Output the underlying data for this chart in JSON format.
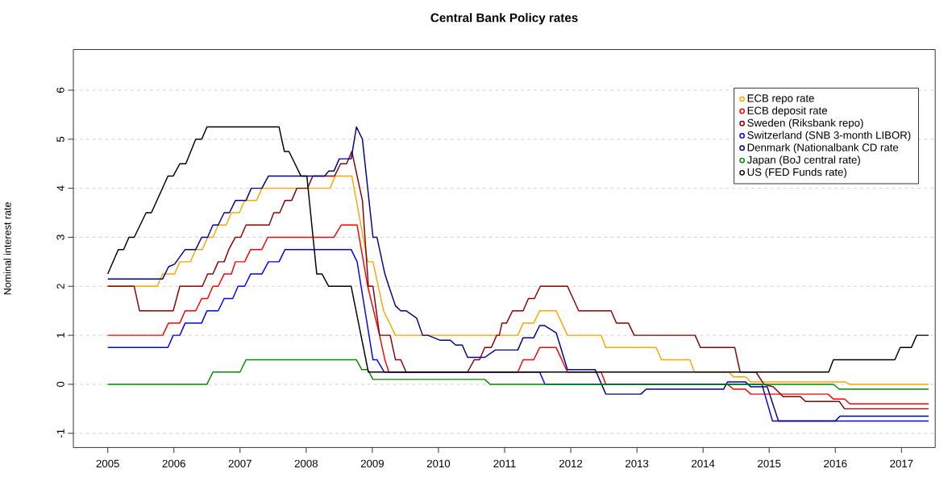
{
  "chart_data": {
    "type": "line",
    "title": "Central Bank Policy rates",
    "ylabel": "Nominal interest rate",
    "xlim": [
      2004.48,
      2017.51
    ],
    "ylim": [
      -1.29,
      6.83
    ],
    "xticks": [
      2005,
      2006,
      2007,
      2008,
      2009,
      2010,
      2011,
      2012,
      2013,
      2014,
      2015,
      2016,
      2017
    ],
    "yticks": [
      -1,
      0,
      1,
      2,
      3,
      4,
      5,
      6
    ],
    "grid": "y",
    "legend": "top right",
    "line_style": "solid",
    "series": [
      {
        "name": "ECB repo rate",
        "color": "#ffa500",
        "x": [
          2005.0,
          2005.75,
          2005.83,
          2006.01,
          2006.09,
          2006.25,
          2006.33,
          2006.43,
          2006.51,
          2006.59,
          2006.67,
          2006.79,
          2006.87,
          2006.99,
          2007.07,
          2007.25,
          2007.33,
          2008.36,
          2008.44,
          2008.69,
          2008.93,
          2009.01,
          2009.17,
          2009.35,
          2011.2,
          2011.28,
          2011.44,
          2011.53,
          2011.78,
          2011.95,
          2012.46,
          2012.53,
          2013.29,
          2013.37,
          2013.8,
          2013.87,
          2014.39,
          2014.46,
          2014.64,
          2014.72,
          2016.14,
          2016.22,
          2017.41
        ],
        "values": [
          2,
          2,
          2.25,
          2.25,
          2.5,
          2.5,
          2.75,
          2.75,
          3,
          3,
          3.25,
          3.25,
          3.5,
          3.5,
          3.75,
          3.75,
          4,
          4,
          4.25,
          4.25,
          2.5,
          2.5,
          1.5,
          1,
          1,
          1.25,
          1.25,
          1.5,
          1.5,
          1,
          1,
          0.75,
          0.75,
          0.5,
          0.5,
          0.25,
          0.25,
          0.15,
          0.15,
          0.05,
          0.05,
          0,
          0
        ]
      },
      {
        "name": "ECB deposit rate",
        "color": "#ff0000",
        "x": [
          2005.0,
          2005.83,
          2005.92,
          2006.09,
          2006.17,
          2006.33,
          2006.42,
          2006.51,
          2006.59,
          2006.67,
          2006.76,
          2006.87,
          2006.93,
          2007.07,
          2007.16,
          2007.33,
          2007.42,
          2008.42,
          2008.53,
          2008.77,
          2008.93,
          2009.11,
          2009.19,
          2009.25,
          2011.2,
          2011.28,
          2011.44,
          2011.53,
          2011.78,
          2011.95,
          2012.46,
          2012.53,
          2014.37,
          2014.46,
          2014.64,
          2014.72,
          2015.89,
          2015.97,
          2016.14,
          2016.22,
          2017.41
        ],
        "values": [
          1,
          1,
          1.25,
          1.25,
          1.5,
          1.5,
          1.75,
          1.75,
          2,
          2,
          2.25,
          2.25,
          2.5,
          2.5,
          2.75,
          2.75,
          3,
          3,
          3.25,
          3.25,
          2,
          1,
          0.5,
          0.25,
          0.25,
          0.5,
          0.5,
          0.75,
          0.75,
          0.25,
          0.25,
          0,
          0,
          -0.1,
          -0.1,
          -0.2,
          -0.2,
          -0.3,
          -0.3,
          -0.4,
          -0.4
        ]
      },
      {
        "name": "Sweden (Riksbank repo)",
        "color": "#8b0000",
        "x": [
          2005.0,
          2005.4,
          2005.48,
          2005.99,
          2006.09,
          2006.43,
          2006.51,
          2006.59,
          2006.67,
          2006.76,
          2006.83,
          2006.93,
          2007.01,
          2007.09,
          2007.44,
          2007.51,
          2007.6,
          2007.68,
          2007.78,
          2007.86,
          2008.02,
          2008.1,
          2008.43,
          2008.52,
          2008.61,
          2008.69,
          2008.85,
          2008.94,
          2009.01,
          2009.11,
          2009.27,
          2009.35,
          2009.43,
          2009.51,
          2010.44,
          2010.54,
          2010.62,
          2010.7,
          2010.8,
          2010.88,
          2010.92,
          2010.96,
          2011.03,
          2011.12,
          2011.28,
          2011.36,
          2011.45,
          2011.54,
          2011.95,
          2012.12,
          2012.61,
          2012.69,
          2012.87,
          2012.96,
          2013.88,
          2013.96,
          2014.48,
          2014.56,
          2014.8,
          2014.92,
          2015.06,
          2015.21,
          2015.47,
          2015.55,
          2016.06,
          2016.14,
          2017.41
        ],
        "values": [
          2,
          2,
          1.5,
          1.5,
          2,
          2,
          2.25,
          2.25,
          2.5,
          2.5,
          2.75,
          3,
          3,
          3.25,
          3.25,
          3.5,
          3.5,
          3.75,
          3.75,
          4,
          4,
          4.25,
          4.25,
          4.5,
          4.5,
          4.75,
          3.75,
          2,
          2,
          1,
          1,
          0.5,
          0.5,
          0.25,
          0.25,
          0.5,
          0.5,
          0.75,
          0.75,
          1,
          1,
          1.25,
          1.25,
          1.5,
          1.5,
          1.75,
          1.75,
          2,
          2,
          1.5,
          1.5,
          1.25,
          1.25,
          1,
          1,
          0.75,
          0.75,
          0.25,
          0.25,
          0,
          -0.05,
          -0.25,
          -0.25,
          -0.35,
          -0.35,
          -0.5,
          -0.5
        ]
      },
      {
        "name": "Switzerland (SNB 3-month LIBOR)",
        "color": "#0000ff",
        "x": [
          2005.0,
          2005.91,
          2005.99,
          2006.09,
          2006.17,
          2006.42,
          2006.5,
          2006.67,
          2006.76,
          2006.89,
          2006.97,
          2007.07,
          2007.16,
          2007.33,
          2007.43,
          2007.59,
          2007.68,
          2008.68,
          2008.77,
          2009.01,
          2009.07,
          2009.18,
          2011.53,
          2011.61,
          2014.89,
          2015.05,
          2017.41
        ],
        "values": [
          0.75,
          0.75,
          1,
          1,
          1.25,
          1.25,
          1.5,
          1.5,
          1.75,
          1.75,
          2,
          2,
          2.25,
          2.25,
          2.5,
          2.5,
          2.75,
          2.75,
          2.5,
          0.5,
          0.5,
          0.25,
          0.25,
          0,
          0,
          -0.75,
          -0.75
        ]
      },
      {
        "name": "Denmark (Nationalbank CD rate",
        "color": "#00008b",
        "x": [
          2005.0,
          2005.83,
          2005.92,
          2006.01,
          2006.17,
          2006.33,
          2006.42,
          2006.51,
          2006.59,
          2006.67,
          2006.76,
          2006.84,
          2006.93,
          2007.09,
          2007.17,
          2007.33,
          2007.43,
          2008.28,
          2008.34,
          2008.42,
          2008.5,
          2008.68,
          2008.76,
          2008.85,
          2009.01,
          2009.07,
          2009.19,
          2009.25,
          2009.35,
          2009.43,
          2009.51,
          2009.67,
          2009.76,
          2009.84,
          2010.02,
          2010.18,
          2010.26,
          2010.36,
          2010.44,
          2010.7,
          2010.86,
          2011.2,
          2011.28,
          2011.44,
          2011.53,
          2011.6,
          2011.78,
          2011.95,
          2012.37,
          2012.53,
          2013.06,
          2013.14,
          2014.31,
          2014.37,
          2014.64,
          2014.72,
          2014.97,
          2015.14,
          2016.0,
          2016.07,
          2017.41
        ],
        "values": [
          2.15,
          2.15,
          2.4,
          2.45,
          2.75,
          2.75,
          3,
          3,
          3.25,
          3.25,
          3.5,
          3.5,
          3.75,
          3.75,
          4,
          4,
          4.25,
          4.25,
          4.35,
          4.35,
          4.6,
          4.6,
          5.25,
          5,
          3,
          3,
          2.25,
          2,
          1.6,
          1.5,
          1.5,
          1.35,
          1,
          1,
          0.9,
          0.9,
          0.8,
          0.8,
          0.55,
          0.55,
          0.7,
          0.7,
          0.95,
          0.95,
          1.2,
          1.2,
          1.05,
          0.3,
          0.3,
          -0.2,
          -0.2,
          -0.1,
          -0.1,
          0.05,
          0.05,
          -0.05,
          -0.05,
          -0.75,
          -0.75,
          -0.65,
          -0.65
        ]
      },
      {
        "name": "Japan (BoJ central rate)",
        "color": "#008b00",
        "x": [
          2005.0,
          2006.5,
          2006.59,
          2007.0,
          2007.09,
          2008.76,
          2008.84,
          2008.93,
          2009.01,
          2010.7,
          2010.78,
          2015.97,
          2016.06,
          2017.41
        ],
        "values": [
          0,
          0,
          0.25,
          0.25,
          0.5,
          0.5,
          0.3,
          0.3,
          0.1,
          0.1,
          0,
          0,
          -0.1,
          -0.1
        ]
      },
      {
        "name": "US (FED Funds rate)",
        "color": "#000000",
        "x": [
          2005.0,
          2005.16,
          2005.24,
          2005.32,
          2005.4,
          2005.58,
          2005.66,
          2005.91,
          2005.99,
          2006.09,
          2006.18,
          2006.33,
          2006.42,
          2006.5,
          2007.59,
          2007.67,
          2007.74,
          2007.92,
          2008.01,
          2008.16,
          2008.24,
          2008.34,
          2008.68,
          2008.94,
          2015.9,
          2015.97,
          2016.9,
          2016.98,
          2017.15,
          2017.23,
          2017.41
        ],
        "values": [
          2.25,
          2.75,
          2.75,
          3,
          3,
          3.5,
          3.5,
          4.25,
          4.25,
          4.5,
          4.5,
          5,
          5,
          5.25,
          5.25,
          4.75,
          4.75,
          4.25,
          4.25,
          2.25,
          2.25,
          2,
          2,
          0.25,
          0.25,
          0.5,
          0.5,
          0.75,
          0.75,
          1,
          1
        ]
      }
    ]
  }
}
